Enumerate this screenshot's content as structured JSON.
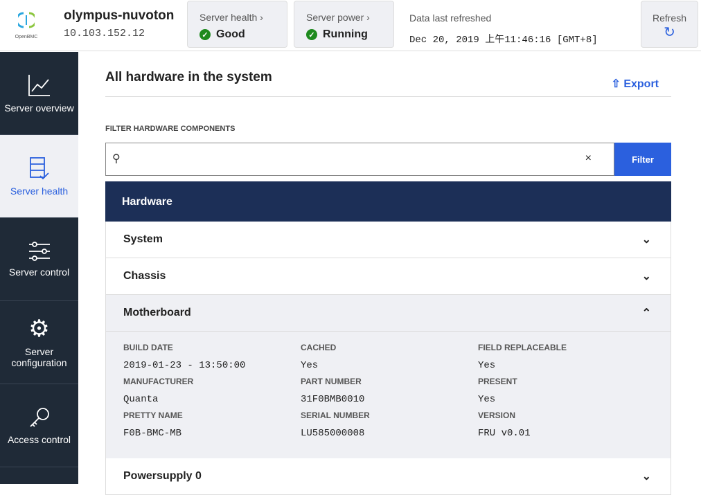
{
  "header": {
    "logo_text": "OpenBMC",
    "hostname": "olympus-nuvoton",
    "ip": "10.103.152.12",
    "server_health": {
      "label": "Server health",
      "value": "Good"
    },
    "server_power": {
      "label": "Server power",
      "value": "Running"
    },
    "refreshed_label": "Data last refreshed",
    "refreshed_value": "Dec 20, 2019 上午11:46:16 [GMT+8]",
    "refresh_label": "Refresh"
  },
  "nav": {
    "items": [
      {
        "label": "Server overview"
      },
      {
        "label": "Server health"
      },
      {
        "label": "Server control"
      },
      {
        "label": "Server configuration"
      },
      {
        "label": "Access control"
      }
    ]
  },
  "main": {
    "title": "All hardware in the system",
    "export_label": "Export",
    "filter_label": "FILTER HARDWARE COMPONENTS",
    "search_value": "",
    "filter_button": "Filter",
    "table_header": "Hardware",
    "rows": [
      "System",
      "Chassis",
      "Motherboard",
      "Powersupply 0"
    ],
    "details": [
      {
        "label": "BUILD DATE",
        "value": "2019-01-23 - 13:50:00"
      },
      {
        "label": "CACHED",
        "value": "Yes"
      },
      {
        "label": "FIELD REPLACEABLE",
        "value": "Yes"
      },
      {
        "label": "MANUFACTURER",
        "value": "Quanta"
      },
      {
        "label": "PART NUMBER",
        "value": "31F0BMB0010"
      },
      {
        "label": "PRESENT",
        "value": "Yes"
      },
      {
        "label": "PRETTY NAME",
        "value": "F0B-BMC-MB"
      },
      {
        "label": "SERIAL NUMBER",
        "value": "LU585000008"
      },
      {
        "label": "VERSION",
        "value": "FRU v0.01"
      }
    ]
  }
}
